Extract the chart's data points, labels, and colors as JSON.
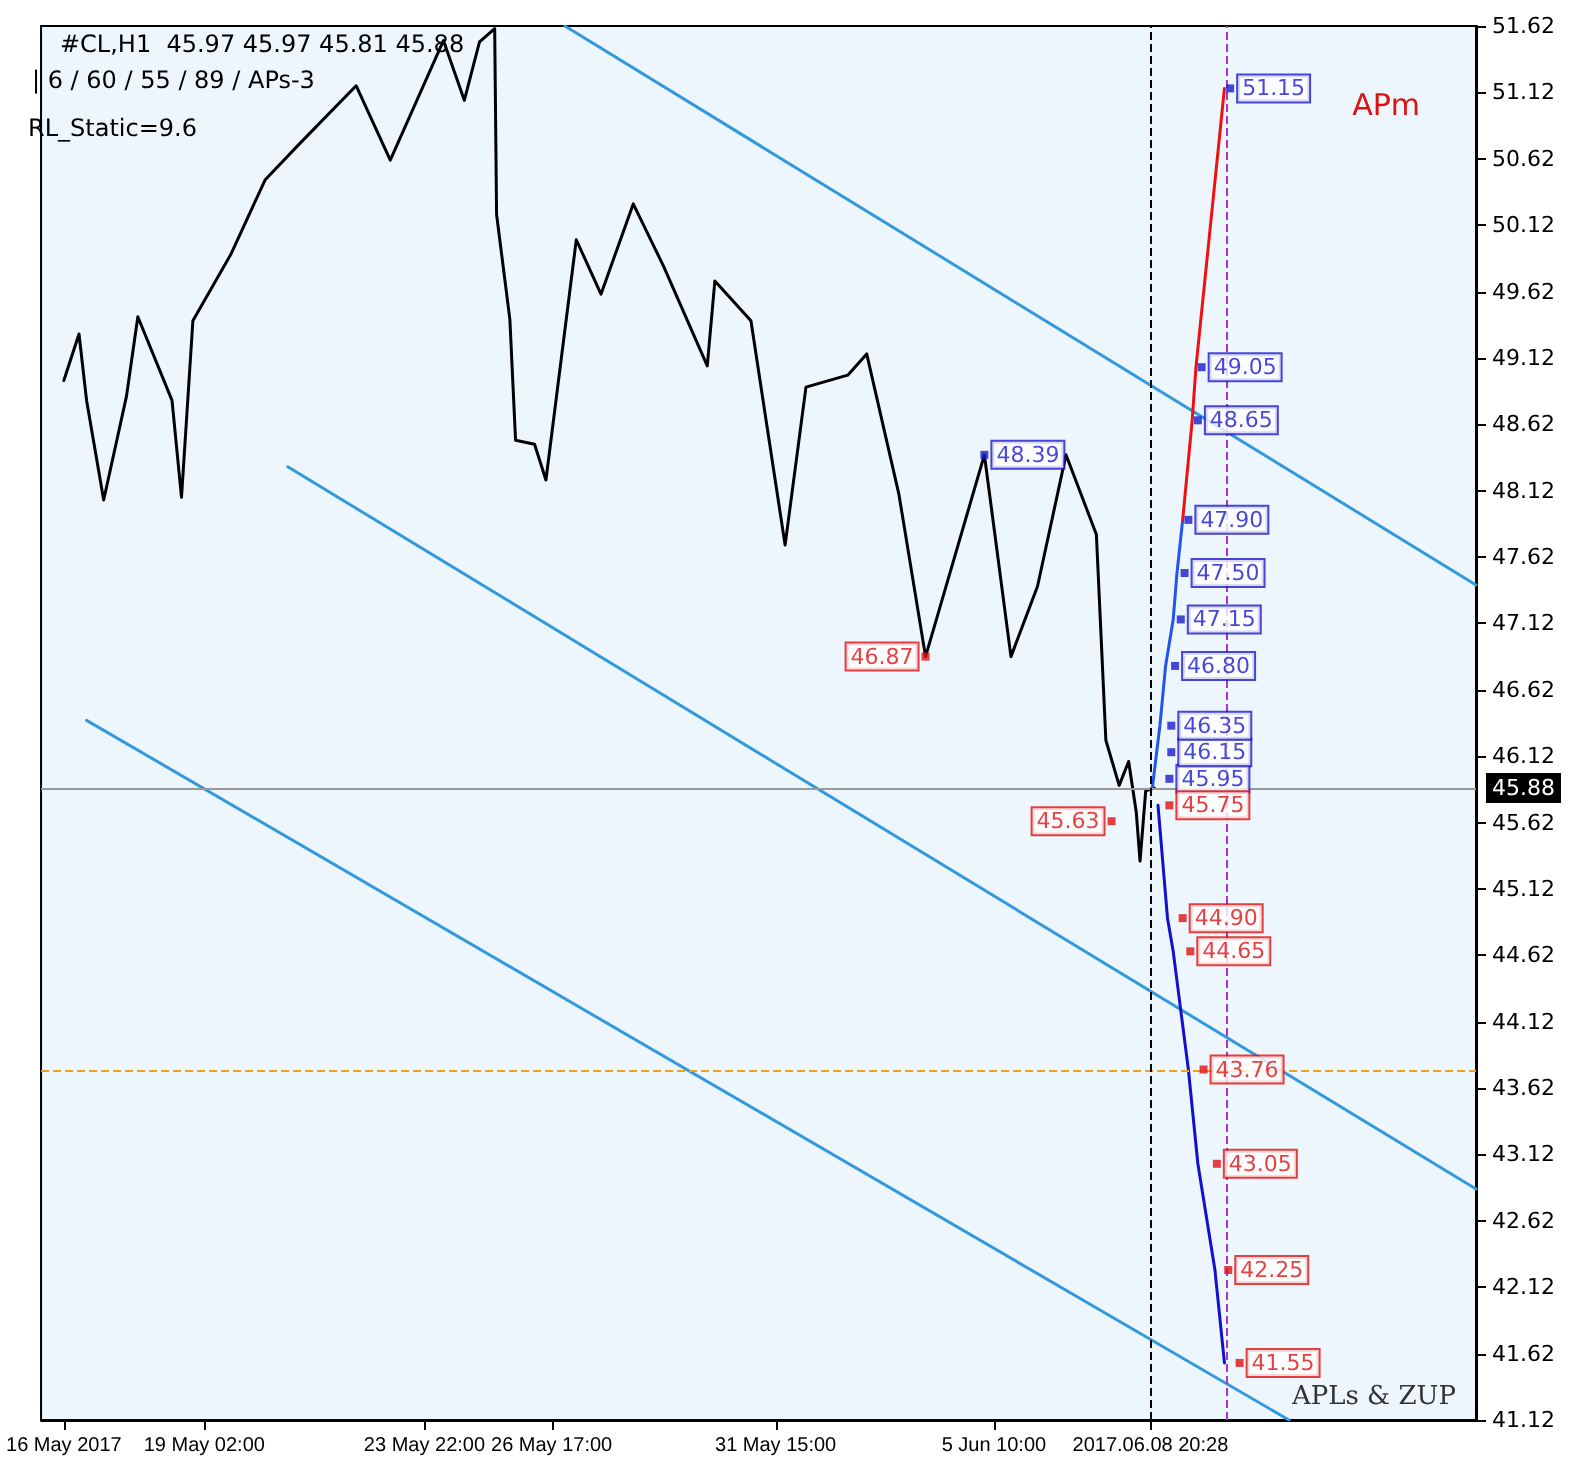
{
  "chart_data": {
    "type": "line",
    "xlim": [
      "2017-05-15T12:00",
      "2017-06-16T00:00"
    ],
    "ylim": [
      41.12,
      51.62
    ],
    "xticks": [
      {
        "value": "2017-05-16T00:00",
        "label": "16 May 2017"
      },
      {
        "value": "2017-05-19T02:00",
        "label": "19 May 02:00"
      },
      {
        "value": "2017-05-23T22:00",
        "label": "23 May 22:00"
      },
      {
        "value": "2017-05-26T17:00",
        "label": "26 May 17:00"
      },
      {
        "value": "2017-05-31T15:00",
        "label": "31 May 15:00"
      },
      {
        "value": "2017-06-05T10:00",
        "label": "5 Jun 10:00"
      },
      {
        "value": "2017-06-08T20:28",
        "label": "2017.06.08 20:28"
      }
    ],
    "yticks": [
      41.12,
      41.62,
      42.12,
      42.62,
      43.12,
      43.62,
      44.12,
      44.62,
      45.12,
      45.62,
      46.12,
      46.62,
      47.12,
      47.62,
      48.12,
      48.62,
      49.12,
      49.62,
      50.12,
      50.62,
      51.12,
      51.62
    ],
    "series": [
      {
        "color": "#000000",
        "marker": "none",
        "x": [
          "2017-05-16T00:00",
          "2017-05-16T08:00",
          "2017-05-16T12:00",
          "2017-05-16T21:00",
          "2017-05-17T09:00",
          "2017-05-17T15:00",
          "2017-05-18T09:00",
          "2017-05-18T14:00",
          "2017-05-18T20:00",
          "2017-05-19T16:00",
          "2017-05-20T10:00",
          "2017-05-21T04:00",
          "2017-05-22T10:00",
          "2017-05-23T04:00",
          "2017-05-24T08:00",
          "2017-05-24T19:00",
          "2017-05-25T03:00",
          "2017-05-25T11:00",
          "2017-05-25T12:00",
          "2017-05-25T19:00",
          "2017-05-25T22:00",
          "2017-05-26T08:00",
          "2017-05-26T14:00",
          "2017-05-27T06:00",
          "2017-05-27T19:00",
          "2017-05-28T12:00",
          "2017-05-29T04:00",
          "2017-05-30T03:00",
          "2017-05-30T07:00",
          "2017-05-31T02:00",
          "2017-05-31T20:00",
          "2017-06-01T07:00",
          "2017-06-02T05:00",
          "2017-06-02T15:00",
          "2017-06-03T08:00",
          "2017-06-03T22:00",
          "2017-06-05T05:00",
          "2017-06-05T19:00",
          "2017-06-06T09:00",
          "2017-06-07T00:00",
          "2017-06-07T16:00",
          "2017-06-07T21:00",
          "2017-06-08T04:00",
          "2017-06-08T09:00",
          "2017-06-08T13:00",
          "2017-06-08T15:00",
          "2017-06-08T18:00",
          "2017-06-08T22:28"
        ],
        "values": [
          48.95,
          49.3,
          48.8,
          48.05,
          48.83,
          49.43,
          48.8,
          48.07,
          49.4,
          49.9,
          50.46,
          50.73,
          51.17,
          50.61,
          51.51,
          51.06,
          51.5,
          51.6,
          50.2,
          49.41,
          48.5,
          48.47,
          48.2,
          50.01,
          49.6,
          50.28,
          49.81,
          49.06,
          49.7,
          49.4,
          47.71,
          48.9,
          48.99,
          49.15,
          48.09,
          46.87,
          48.39,
          46.87,
          47.4,
          48.39,
          47.79,
          46.24,
          45.9,
          46.08,
          45.7,
          45.33,
          45.86,
          45.88
        ]
      },
      {
        "color": "#3399dd",
        "marker": "none",
        "x": [
          "2017-05-27T00:00",
          "2017-06-16T00:00"
        ],
        "values": [
          51.62,
          47.41
        ]
      },
      {
        "color": "#3399dd",
        "marker": "none",
        "x": [
          "2017-05-20T22:00",
          "2017-06-16T00:00"
        ],
        "values": [
          48.3,
          42.86
        ]
      },
      {
        "color": "#3399dd",
        "marker": "none",
        "x": [
          "2017-05-16T12:00",
          "2017-06-11T21:28"
        ],
        "values": [
          46.39,
          41.12
        ]
      },
      {
        "color": "#2255ee",
        "marker": "none",
        "x": [
          "2017-06-08T21:28",
          "2017-06-09T01:28",
          "2017-06-09T04:28",
          "2017-06-09T08:28",
          "2017-06-09T10:28",
          "2017-06-09T13:28"
        ],
        "values": [
          45.88,
          46.35,
          46.8,
          47.15,
          47.5,
          47.9
        ]
      },
      {
        "color": "#ee1111",
        "marker": "none",
        "x": [
          "2017-06-09T13:28",
          "2017-06-09T18:28",
          "2017-06-09T20:28",
          "2017-06-10T11:28"
        ],
        "values": [
          47.9,
          48.65,
          49.05,
          51.15
        ]
      },
      {
        "color": "#1111cc",
        "marker": "none",
        "x": [
          "2017-06-09T00:28",
          "2017-06-09T05:28",
          "2017-06-09T08:28",
          "2017-06-09T16:28",
          "2017-06-09T21:28",
          "2017-06-10T06:28",
          "2017-06-10T11:28"
        ],
        "values": [
          45.75,
          44.9,
          44.65,
          43.76,
          43.05,
          42.25,
          41.55
        ]
      },
      {
        "type": "scatter",
        "color": "#1a1acc",
        "marker": "square",
        "x": [
          "2017-06-05T05:00",
          "2017-06-09T06:28",
          "2017-06-09T07:28",
          "2017-06-09T07:28",
          "2017-06-09T09:28",
          "2017-06-09T12:28",
          "2017-06-09T14:28",
          "2017-06-09T16:28",
          "2017-06-09T21:28",
          "2017-06-09T23:28",
          "2017-06-10T14:28"
        ],
        "values": [
          48.39,
          45.95,
          46.15,
          46.35,
          46.8,
          47.15,
          47.5,
          47.9,
          48.65,
          49.05,
          51.15
        ],
        "value_labels": [
          "48.39",
          "45.95",
          "46.15",
          "46.35",
          "46.80",
          "47.15",
          "47.50",
          "47.90",
          "48.65",
          "49.05",
          "51.15"
        ]
      },
      {
        "type": "scatter",
        "color": "#dd1111",
        "marker": "square",
        "x": [
          "2017-06-09T06:28",
          "2017-06-09T13:28",
          "2017-06-09T17:28",
          "2017-06-10T00:28",
          "2017-06-10T07:28",
          "2017-06-10T13:28",
          "2017-06-10T19:28"
        ],
        "values": [
          45.75,
          44.9,
          44.65,
          43.76,
          43.05,
          42.25,
          41.55
        ],
        "value_labels": [
          "45.75",
          "44.90",
          "44.65",
          "43.76",
          "43.05",
          "42.25",
          "41.55"
        ]
      },
      {
        "type": "scatter",
        "color": "#dd1111",
        "marker": "square",
        "x": [
          "2017-06-03T22:00",
          "2017-06-08T00:00"
        ],
        "values": [
          46.87,
          45.63
        ],
        "value_labels": [
          "46.87",
          "45.63"
        ]
      }
    ],
    "ref_lines": [
      {
        "axis": "y",
        "value": 45.88,
        "label": "45.88",
        "color": "#999999",
        "line_style": "solid"
      },
      {
        "axis": "y",
        "value": 43.76,
        "label": null,
        "color": "#f0a020",
        "line_style": "dashed"
      },
      {
        "axis": "x",
        "value": "2017-06-08T20:28",
        "label": null,
        "color": "#000000",
        "line_style": "dashed"
      },
      {
        "axis": "x",
        "value": "2017-06-10T12:28",
        "label": null,
        "color": "#aa33cc",
        "line_style": "dashed"
      }
    ],
    "annotations": [
      "#CL,H1  45.97 45.97 45.81 45.88",
      "| 6 / 60 / 55 / 89 / APs-3",
      "RL_Static=9.6",
      "APm",
      "APLs & ZUP"
    ]
  }
}
